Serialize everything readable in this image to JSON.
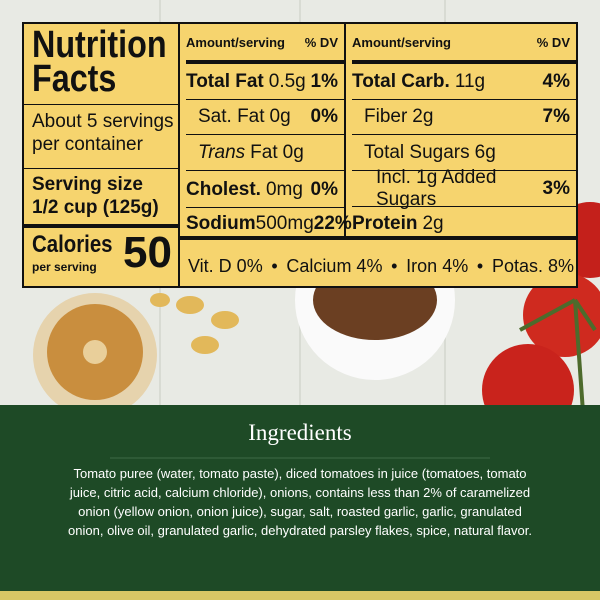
{
  "label": {
    "title": "Nutrition Facts",
    "servings": "About 5 servings per container",
    "serving_size_label": "Serving size",
    "serving_size": "1/2 cup (125g)",
    "calories_label": "Calories",
    "calories_sub": "per serving",
    "calories": "50",
    "headers": [
      {
        "amount": "Amount/serving",
        "dv": "% DV"
      },
      {
        "amount": "Amount/serving",
        "dv": "% DV"
      }
    ],
    "left_rows": [
      {
        "label": "Total Fat",
        "amount": "0.5g",
        "dv": "1%"
      },
      {
        "label": "Sat. Fat",
        "amount": "0g",
        "dv": "0%"
      },
      {
        "italic": "Trans",
        "label": "Fat",
        "amount": "0g"
      },
      {
        "label": "Cholest.",
        "amount": "0mg",
        "dv": "0%"
      },
      {
        "label": "Sodium",
        "amount": "500mg",
        "dv": "22%"
      }
    ],
    "right_rows": [
      {
        "label": "Total Carb.",
        "amount": "11g",
        "dv": "4%"
      },
      {
        "label": "Fiber",
        "amount": "2g",
        "dv": "7%"
      },
      {
        "label": "Total Sugars",
        "amount": "6g"
      },
      {
        "label": "Incl. 1g Added Sugars",
        "dv": "3%"
      },
      {
        "label": "Protein",
        "amount": "2g"
      }
    ],
    "vitamins": [
      "Vit. D 0%",
      "Calcium 4%",
      "Iron 4%",
      "Potas. 8%"
    ]
  },
  "ingredients": {
    "title": "Ingredients",
    "text": "Tomato puree (water, tomato paste), diced tomatoes in juice (tomatoes, tomato juice, citric acid, calcium chloride), onions, contains less than 2% of caramelized onion (yellow onion, onion juice), sugar, salt, roasted garlic, garlic, granulated onion, olive oil, granulated garlic, dehydrated parsley flakes, spice, natural flavor."
  }
}
